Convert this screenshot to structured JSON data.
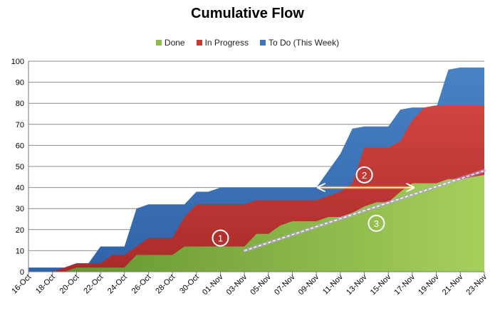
{
  "chart_data": {
    "type": "area",
    "stacked": false,
    "title": "Cumulative Flow",
    "xlabel": "",
    "ylabel": "",
    "ylim": [
      0,
      100
    ],
    "yticks": [
      0,
      10,
      20,
      30,
      40,
      50,
      60,
      70,
      80,
      90,
      100
    ],
    "grid": true,
    "legend_position": "top",
    "categories": [
      "16-Oct",
      "17-Oct",
      "18-Oct",
      "19-Oct",
      "20-Oct",
      "21-Oct",
      "22-Oct",
      "23-Oct",
      "24-Oct",
      "25-Oct",
      "26-Oct",
      "27-Oct",
      "28-Oct",
      "29-Oct",
      "30-Oct",
      "31-Oct",
      "01-Nov",
      "02-Nov",
      "03-Nov",
      "04-Nov",
      "05-Nov",
      "06-Nov",
      "07-Nov",
      "08-Nov",
      "09-Nov",
      "10-Nov",
      "11-Nov",
      "12-Nov",
      "13-Nov",
      "14-Nov",
      "15-Nov",
      "16-Nov",
      "17-Nov",
      "18-Nov",
      "19-Nov",
      "20-Nov",
      "21-Nov",
      "22-Nov",
      "23-Nov"
    ],
    "tick_labels": [
      "16-Oct",
      "18-Oct",
      "20-Oct",
      "22-Oct",
      "24-Oct",
      "26-Oct",
      "28-Oct",
      "30-Oct",
      "01-Nov",
      "03-Nov",
      "05-Nov",
      "07-Nov",
      "09-Nov",
      "11-Nov",
      "13-Nov",
      "15-Nov",
      "17-Nov",
      "19-Nov",
      "21-Nov",
      "23-Nov"
    ],
    "series": [
      {
        "name": "To Do (This Week)",
        "color": "#3d74bb",
        "values": [
          2,
          2,
          2,
          2,
          4,
          4,
          12,
          12,
          12,
          30,
          32,
          32,
          32,
          32,
          38,
          38,
          40,
          40,
          40,
          40,
          40,
          40,
          40,
          40,
          40,
          48,
          56,
          68,
          69,
          69,
          69,
          77,
          78,
          78,
          78,
          96,
          97,
          97,
          97
        ]
      },
      {
        "name": "In Progress",
        "color": "#c43835",
        "values": [
          0,
          0,
          0,
          2,
          4,
          4,
          4,
          8,
          8,
          12,
          16,
          16,
          16,
          26,
          32,
          32,
          32,
          32,
          32,
          34,
          34,
          34,
          34,
          34,
          34,
          36,
          38,
          42,
          59,
          59,
          59,
          62,
          72,
          78,
          79,
          79,
          79,
          79,
          79
        ]
      },
      {
        "name": "Done",
        "color": "#8dbd4a",
        "values": [
          0,
          0,
          0,
          0,
          2,
          2,
          2,
          2,
          2,
          8,
          8,
          8,
          8,
          12,
          12,
          12,
          12,
          12,
          12,
          18,
          18,
          22,
          24,
          24,
          24,
          26,
          26,
          28,
          31,
          33,
          33,
          38,
          42,
          42,
          42,
          44,
          44,
          45,
          46
        ]
      }
    ],
    "annotations": [
      {
        "label": "1",
        "x": "01-Nov",
        "y": 16
      },
      {
        "label": "2",
        "x": "13-Nov",
        "y": 46
      },
      {
        "label": "3",
        "x": "14-Nov",
        "y": 23
      }
    ],
    "trendline": {
      "from": {
        "x": "03-Nov",
        "y": 10
      },
      "to": {
        "x": "23-Nov",
        "y": 48
      }
    },
    "arrow": {
      "from": {
        "x": "09-Nov",
        "y": 40
      },
      "to": {
        "x": "17-Nov",
        "y": 40
      }
    }
  }
}
